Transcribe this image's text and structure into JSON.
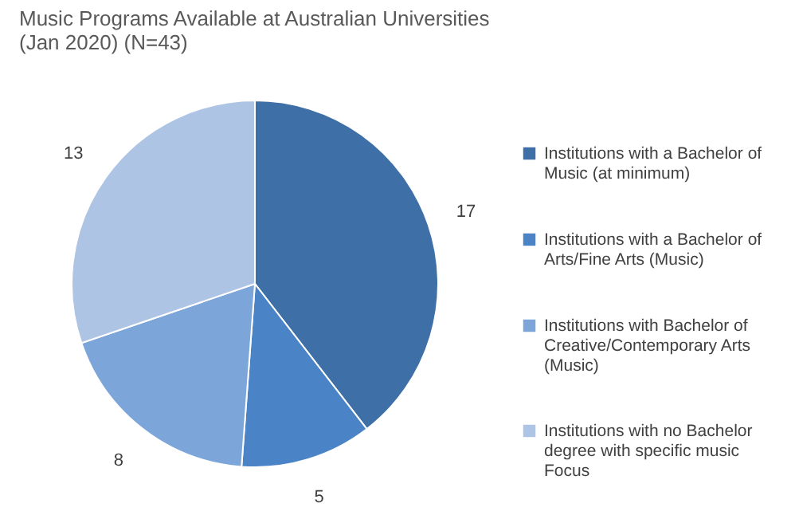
{
  "chart_data": {
    "type": "pie",
    "title": "Music Programs Available at Australian Universities (Jan 2020) (N=43)",
    "categories": [
      "Institutions with a Bachelor of Music (at minimum)",
      "Institutions with a Bachelor of Arts/Fine Arts (Music)",
      "Institutions with Bachelor of Creative/Contemporary Arts (Music)",
      "Institutions with no Bachelor degree with specific music Focus"
    ],
    "values": [
      17,
      5,
      8,
      13
    ],
    "colors": [
      "#3e6fa6",
      "#4a84c6",
      "#7ca5da",
      "#aec4e5"
    ],
    "data_labels": true,
    "legend": "right"
  }
}
